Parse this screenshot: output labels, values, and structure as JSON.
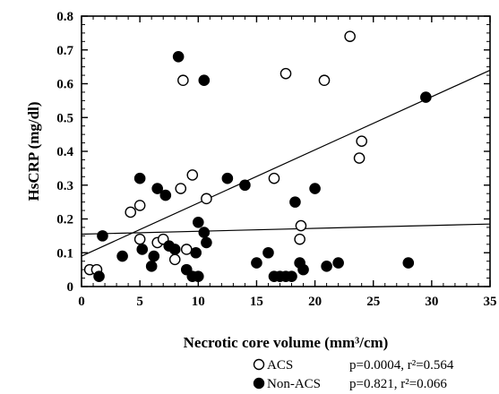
{
  "chart_data": {
    "type": "scatter",
    "title": "",
    "xlabel": "Necrotic core volume (mm³/cm)",
    "ylabel": "HsCRP (mg/dl)",
    "xlim": [
      0,
      35
    ],
    "ylim": [
      0,
      0.8
    ],
    "x_ticks": [
      "0",
      "5",
      "10",
      "15",
      "20",
      "25",
      "30",
      "35"
    ],
    "y_ticks": [
      "0",
      "0.1",
      "0.2",
      "0.3",
      "0.4",
      "0.5",
      "0.6",
      "0.7",
      "0.8"
    ],
    "grid": false,
    "legend_position": "bottom-right, below plot",
    "series": [
      {
        "name": "ACS",
        "marker": "open-circle",
        "color": "#000000",
        "stats": "p=0.0004,  r²=0.564",
        "points": [
          [
            0.7,
            0.05
          ],
          [
            1.3,
            0.05
          ],
          [
            4.2,
            0.22
          ],
          [
            5.0,
            0.24
          ],
          [
            5.0,
            0.14
          ],
          [
            6.5,
            0.13
          ],
          [
            7.0,
            0.14
          ],
          [
            8.0,
            0.08
          ],
          [
            8.5,
            0.29
          ],
          [
            8.7,
            0.61
          ],
          [
            9.0,
            0.11
          ],
          [
            9.5,
            0.33
          ],
          [
            10.7,
            0.26
          ],
          [
            16.5,
            0.32
          ],
          [
            17.5,
            0.63
          ],
          [
            18.7,
            0.14
          ],
          [
            18.8,
            0.18
          ],
          [
            20.8,
            0.61
          ],
          [
            23.0,
            0.74
          ],
          [
            23.8,
            0.38
          ],
          [
            24.0,
            0.43
          ]
        ],
        "fit_line": [
          [
            0,
            0.09
          ],
          [
            35,
            0.64
          ]
        ]
      },
      {
        "name": "Non-ACS",
        "marker": "filled-circle",
        "color": "#000000",
        "stats": "p=0.821,    r²=0.066",
        "points": [
          [
            1.5,
            0.03
          ],
          [
            1.8,
            0.15
          ],
          [
            3.5,
            0.09
          ],
          [
            5.0,
            0.32
          ],
          [
            5.2,
            0.11
          ],
          [
            6.0,
            0.06
          ],
          [
            6.2,
            0.09
          ],
          [
            6.5,
            0.29
          ],
          [
            7.2,
            0.27
          ],
          [
            7.5,
            0.12
          ],
          [
            8.0,
            0.11
          ],
          [
            8.3,
            0.68
          ],
          [
            9.0,
            0.05
          ],
          [
            9.5,
            0.03
          ],
          [
            9.8,
            0.1
          ],
          [
            10.0,
            0.19
          ],
          [
            10.0,
            0.03
          ],
          [
            10.5,
            0.61
          ],
          [
            10.5,
            0.16
          ],
          [
            10.7,
            0.13
          ],
          [
            12.5,
            0.32
          ],
          [
            14.0,
            0.3
          ],
          [
            15.0,
            0.07
          ],
          [
            16.0,
            0.1
          ],
          [
            16.5,
            0.03
          ],
          [
            17.0,
            0.03
          ],
          [
            17.5,
            0.03
          ],
          [
            18.0,
            0.03
          ],
          [
            18.3,
            0.25
          ],
          [
            18.7,
            0.07
          ],
          [
            19.0,
            0.05
          ],
          [
            20.0,
            0.29
          ],
          [
            21.0,
            0.06
          ],
          [
            22.0,
            0.07
          ],
          [
            28.0,
            0.07
          ],
          [
            29.5,
            0.56
          ]
        ],
        "fit_line": [
          [
            0,
            0.155
          ],
          [
            35,
            0.185
          ]
        ]
      }
    ]
  }
}
